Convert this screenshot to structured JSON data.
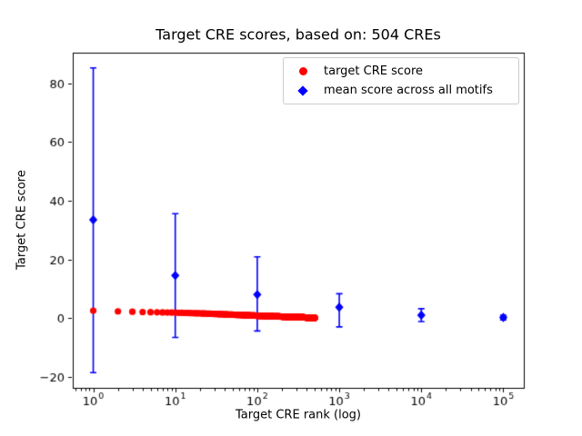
{
  "figure": {
    "background": "#ffffff",
    "title": "Target CRE scores, based on: 504 CREs"
  },
  "axes": {
    "xlabel": "Target CRE rank (log)",
    "ylabel": "Target CRE score"
  },
  "legend": {
    "entries": [
      {
        "label": "target CRE score",
        "marker": "circle",
        "color": "#ff0000"
      },
      {
        "label": "mean score across all motifs",
        "marker": "diamond",
        "color": "#0000ff"
      }
    ]
  },
  "chart_data": {
    "type": "scatter",
    "title": "Target CRE scores, based on: 504 CREs",
    "xlabel": "Target CRE rank (log)",
    "ylabel": "Target CRE score",
    "x_scale": "log",
    "xlim_log10": [
      -0.25,
      5.25
    ],
    "ylim": [
      -23.8,
      90.5
    ],
    "grid": false,
    "legend_position": "upper right",
    "x_ticks": [
      1,
      10,
      100,
      1000,
      10000,
      100000
    ],
    "x_tick_base": "10",
    "x_tick_exponents": [
      "0",
      "1",
      "2",
      "3",
      "4",
      "5"
    ],
    "y_ticks": [
      -20,
      0,
      20,
      40,
      60,
      80
    ],
    "y_tick_labels": [
      "−20",
      "0",
      "20",
      "40",
      "60",
      "80"
    ],
    "series": [
      {
        "name": "target CRE score",
        "plot_type": "scatter",
        "marker": "circle",
        "color": "#ff0000",
        "n_points": 504,
        "rank_range": [
          1,
          504
        ],
        "control_points": [
          [
            1,
            2.5
          ],
          [
            2,
            2.3
          ],
          [
            3,
            2.15
          ],
          [
            4,
            2.07
          ],
          [
            5,
            2.0
          ],
          [
            7,
            1.92
          ],
          [
            10,
            1.85
          ],
          [
            15,
            1.7
          ],
          [
            20,
            1.6
          ],
          [
            30,
            1.42
          ],
          [
            50,
            1.15
          ],
          [
            70,
            1.0
          ],
          [
            100,
            0.8
          ],
          [
            150,
            0.62
          ],
          [
            200,
            0.5
          ],
          [
            300,
            0.32
          ],
          [
            400,
            0.18
          ],
          [
            504,
            0.08
          ]
        ]
      },
      {
        "name": "mean score across all motifs",
        "plot_type": "errorbar",
        "marker": "diamond",
        "color": "#0000ff",
        "x": [
          1,
          10,
          100,
          1000,
          10000,
          100000
        ],
        "y": [
          33.5,
          14.5,
          8.0,
          3.7,
          1.0,
          0.2
        ],
        "err_low": [
          -18.6,
          -6.6,
          -4.4,
          -3.0,
          -1.2,
          -0.6
        ],
        "err_high": [
          85.3,
          35.6,
          20.9,
          8.3,
          3.2,
          1.0
        ]
      }
    ]
  }
}
